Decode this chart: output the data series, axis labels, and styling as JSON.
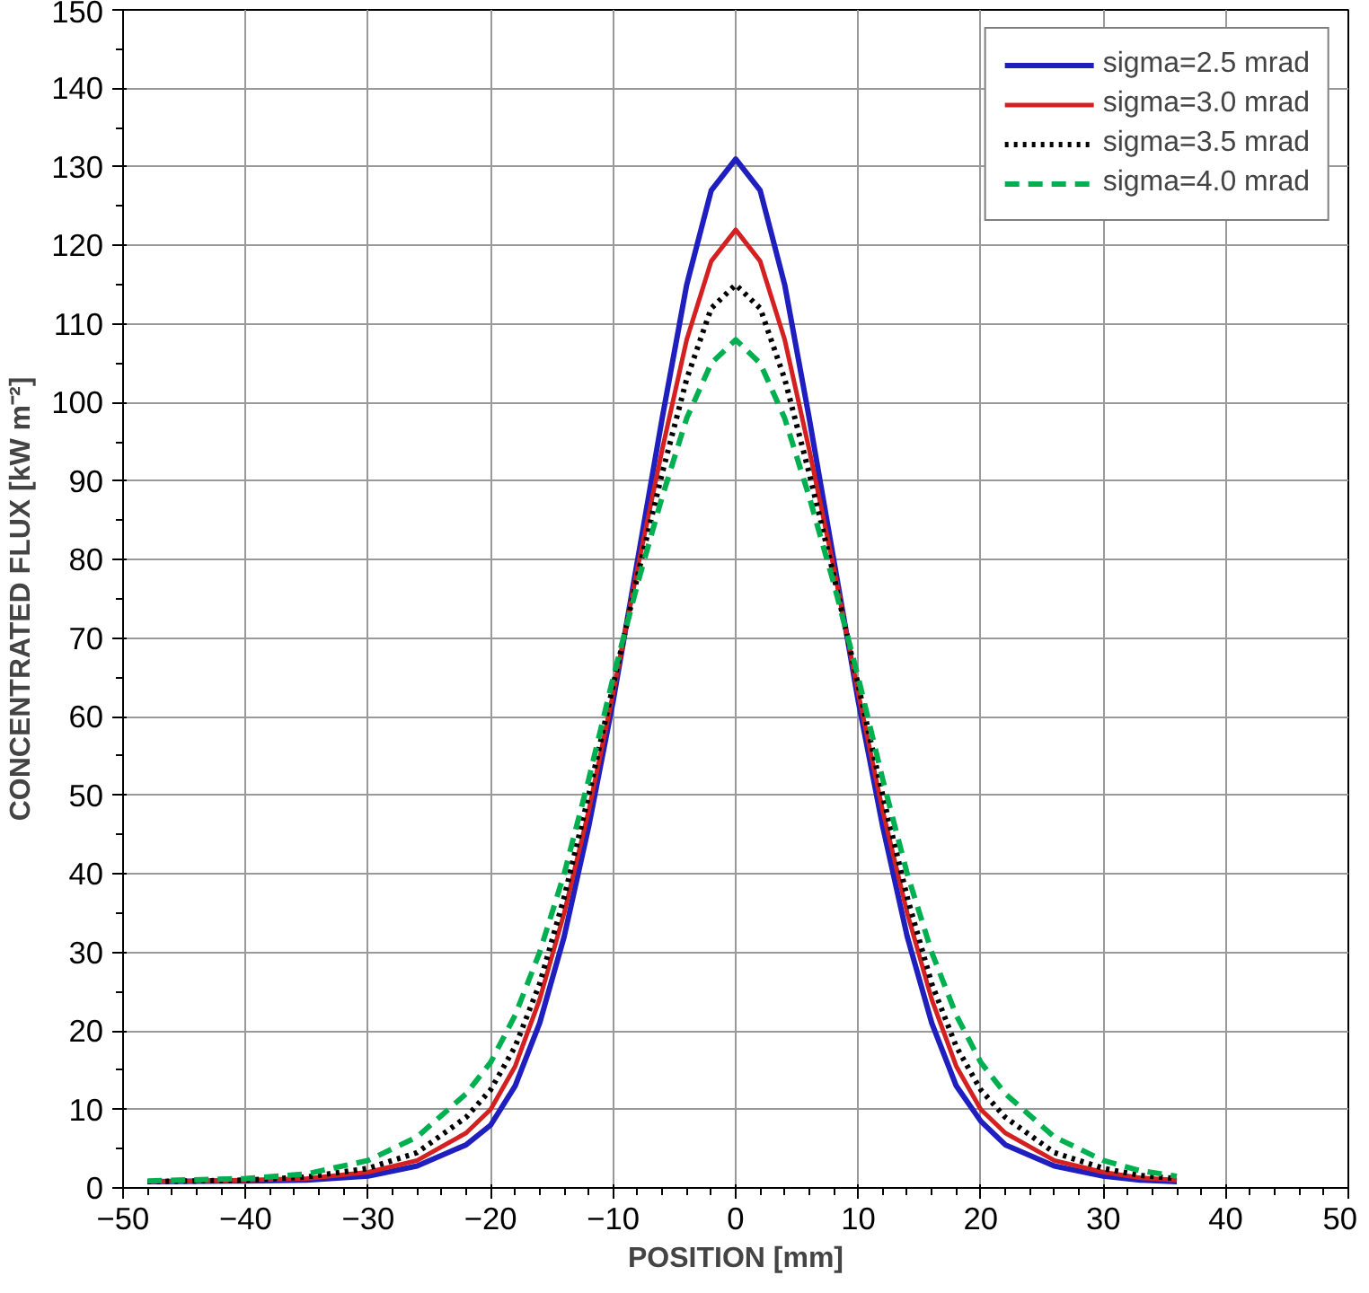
{
  "chart_data": {
    "type": "line",
    "xlabel": "POSITION [mm]",
    "ylabel": "CONCENTRATED FLUX [kW m⁻²]",
    "x": [
      -48,
      -40,
      -35,
      -30,
      -26,
      -22,
      -20,
      -18,
      -16,
      -14,
      -12,
      -10,
      -8,
      -6,
      -4,
      -2,
      0,
      2,
      4,
      6,
      8,
      10,
      12,
      14,
      16,
      18,
      20,
      22,
      26,
      30,
      33,
      36
    ],
    "series": [
      {
        "name": "sigma=2.5 mrad",
        "color": "#1f1fbf",
        "line_style": "solid",
        "values": [
          0.8,
          0.9,
          1.0,
          1.5,
          2.8,
          5.5,
          8,
          13,
          21,
          32,
          46,
          62,
          80,
          98,
          115,
          127,
          131,
          127,
          115,
          98,
          80,
          62,
          46,
          32,
          21,
          13,
          8.5,
          5.5,
          2.8,
          1.5,
          1.0,
          0.8
        ]
      },
      {
        "name": "sigma=3.0 mrad",
        "color": "#d42020",
        "line_style": "solid",
        "values": [
          0.8,
          1.0,
          1.2,
          2,
          3.5,
          7,
          10,
          15.5,
          24,
          35,
          48,
          63,
          79,
          94,
          108,
          118,
          122,
          118,
          108,
          94,
          79,
          63,
          48,
          35,
          24,
          15.5,
          10,
          7,
          3.5,
          2,
          1.3,
          1.0
        ]
      },
      {
        "name": "sigma=3.5 mrad",
        "color": "#000000",
        "line_style": "dotted",
        "values": [
          0.8,
          1.0,
          1.4,
          2.5,
          4.5,
          9,
          12.5,
          18,
          26,
          37,
          50,
          64,
          78,
          91,
          103,
          112,
          115,
          112,
          103,
          91,
          78,
          64,
          50,
          37,
          26,
          18,
          12.5,
          9,
          4.5,
          2.5,
          1.6,
          1.2
        ]
      },
      {
        "name": "sigma=4.0 mrad",
        "color": "#00b050",
        "line_style": "dashed",
        "values": [
          0.9,
          1.2,
          1.8,
          3.5,
          6.5,
          12,
          16,
          22,
          30,
          40,
          52,
          65,
          77,
          88,
          98,
          105,
          108,
          105,
          98,
          88,
          77,
          65,
          52,
          40,
          30,
          22,
          16,
          12,
          6.5,
          3.5,
          2.2,
          1.5
        ]
      }
    ],
    "xlim": [
      -50,
      50
    ],
    "xticks": [
      -50,
      -40,
      -30,
      -20,
      -10,
      0,
      10,
      20,
      30,
      40,
      50
    ],
    "ylim": [
      0,
      150
    ],
    "yticks": [
      0,
      10,
      20,
      30,
      40,
      50,
      60,
      70,
      80,
      90,
      100,
      110,
      120,
      130,
      140,
      150
    ],
    "grid": true,
    "legend": "top right"
  }
}
